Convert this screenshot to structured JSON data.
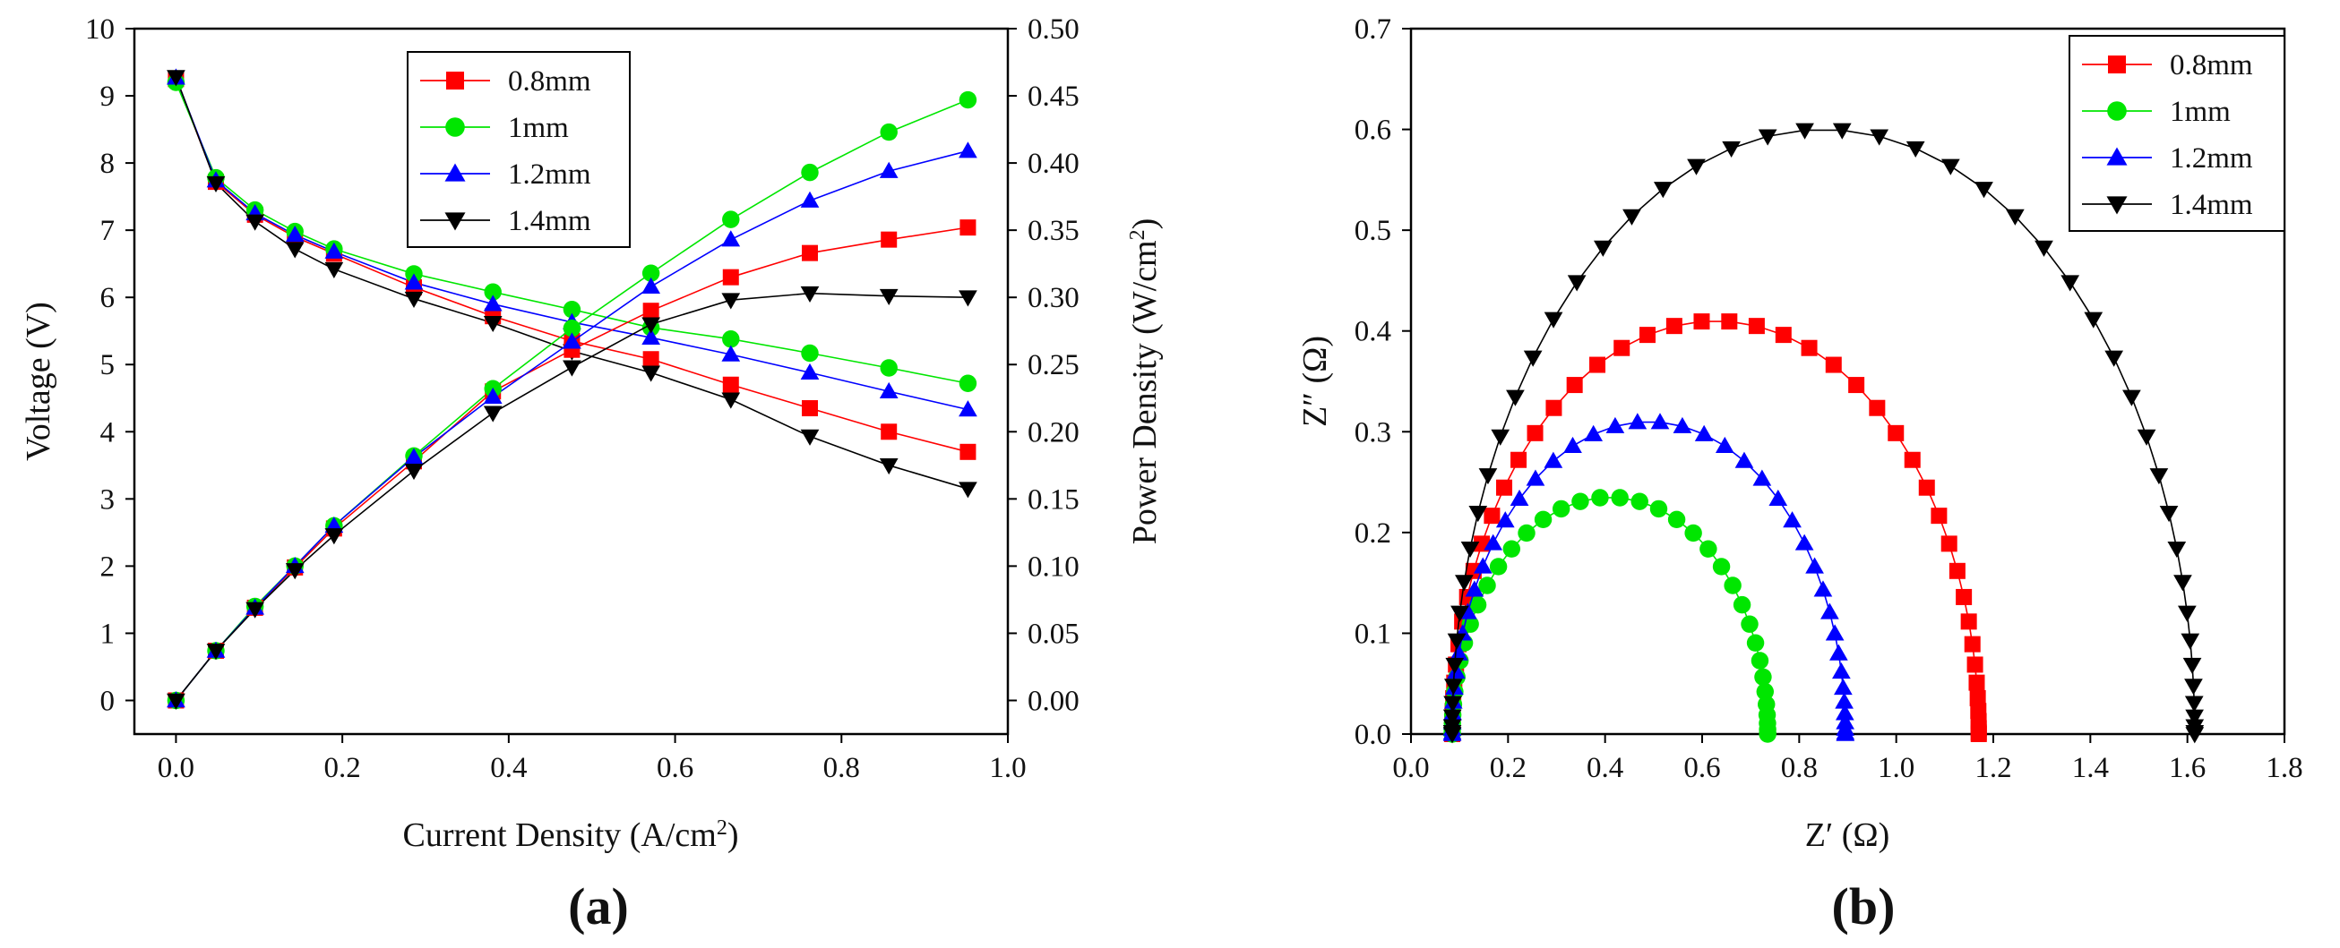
{
  "colors": {
    "0.8mm": "#ff0000",
    "1mm": "#00e600",
    "1.2mm": "#0000ff",
    "1.4mm": "#000000"
  },
  "markers": {
    "0.8mm": "square",
    "1mm": "circle",
    "1.2mm": "triangle-up",
    "1.4mm": "triangle-down"
  },
  "chart_data": [
    {
      "type": "line",
      "panel_label": "(a)",
      "xlabel": "Current Density (A/cm²)",
      "ylabel": "Voltage (V)",
      "y2label": "Power Density (W/cm²)",
      "xlim": [
        -0.05,
        1.0
      ],
      "ylim": [
        -0.5,
        10
      ],
      "y2lim": [
        -0.025,
        0.5
      ],
      "xticks": [
        "0.0",
        "0.2",
        "0.4",
        "0.6",
        "0.8",
        "1.0"
      ],
      "yticks": [
        "0",
        "1",
        "2",
        "3",
        "4",
        "5",
        "6",
        "7",
        "8",
        "9",
        "10"
      ],
      "y2ticks": [
        "0.00",
        "0.05",
        "0.10",
        "0.15",
        "0.20",
        "0.25",
        "0.30",
        "0.35",
        "0.40",
        "0.45",
        "0.50"
      ],
      "legend_position": "top-center",
      "x": [
        0,
        0.048,
        0.095,
        0.143,
        0.19,
        0.286,
        0.381,
        0.476,
        0.571,
        0.667,
        0.762,
        0.857,
        0.952
      ],
      "voltage_series": [
        {
          "name": "0.8mm",
          "values": [
            9.25,
            7.72,
            7.23,
            6.9,
            6.65,
            6.15,
            5.72,
            5.35,
            5.08,
            4.7,
            4.35,
            4.0,
            3.7
          ]
        },
        {
          "name": "1mm",
          "values": [
            9.2,
            7.78,
            7.3,
            6.98,
            6.72,
            6.35,
            6.08,
            5.82,
            5.55,
            5.38,
            5.17,
            4.95,
            4.72
          ]
        },
        {
          "name": "1.2mm",
          "values": [
            9.27,
            7.74,
            7.25,
            6.93,
            6.68,
            6.22,
            5.9,
            5.63,
            5.4,
            5.15,
            4.88,
            4.6,
            4.33
          ]
        },
        {
          "name": "1.4mm",
          "values": [
            9.28,
            7.7,
            7.13,
            6.72,
            6.42,
            5.98,
            5.62,
            5.2,
            4.88,
            4.48,
            3.93,
            3.5,
            3.15
          ]
        }
      ],
      "power_series": [
        {
          "name": "0.8mm",
          "values": [
            0.0,
            0.037,
            0.069,
            0.099,
            0.128,
            0.178,
            0.23,
            0.261,
            0.29,
            0.315,
            0.333,
            0.343,
            0.352
          ]
        },
        {
          "name": "1mm",
          "values": [
            0.0,
            0.037,
            0.07,
            0.1,
            0.13,
            0.182,
            0.232,
            0.277,
            0.318,
            0.358,
            0.393,
            0.423,
            0.447
          ]
        },
        {
          "name": "1.2mm",
          "values": [
            0.0,
            0.037,
            0.069,
            0.1,
            0.13,
            0.181,
            0.226,
            0.267,
            0.308,
            0.343,
            0.372,
            0.394,
            0.409
          ]
        },
        {
          "name": "1.4mm",
          "values": [
            0.0,
            0.037,
            0.068,
            0.097,
            0.123,
            0.171,
            0.214,
            0.248,
            0.28,
            0.298,
            0.303,
            0.301,
            0.3
          ]
        }
      ]
    },
    {
      "type": "scatter",
      "panel_label": "(b)",
      "xlabel": "Z′ (Ω)",
      "ylabel": "Z″ (Ω)",
      "xlim": [
        0.0,
        1.8
      ],
      "ylim": [
        0.0,
        0.7
      ],
      "xticks": [
        "0.0",
        "0.2",
        "0.4",
        "0.6",
        "0.8",
        "1.0",
        "1.2",
        "1.4",
        "1.6",
        "1.8"
      ],
      "yticks": [
        "0.0",
        "0.1",
        "0.2",
        "0.3",
        "0.4",
        "0.5",
        "0.6",
        "0.7"
      ],
      "legend_position": "top-right",
      "series": [
        {
          "name": "0.8mm",
          "r0": 0.085,
          "r1": 1.17,
          "peak": 0.41,
          "n_points": 48
        },
        {
          "name": "1mm",
          "r0": 0.085,
          "r1": 0.735,
          "peak": 0.235,
          "n_points": 40
        },
        {
          "name": "1.2mm",
          "r0": 0.085,
          "r1": 0.895,
          "peak": 0.31,
          "n_points": 44
        },
        {
          "name": "1.4mm",
          "r0": 0.085,
          "r1": 1.615,
          "peak": 0.6,
          "n_points": 50
        }
      ]
    }
  ]
}
